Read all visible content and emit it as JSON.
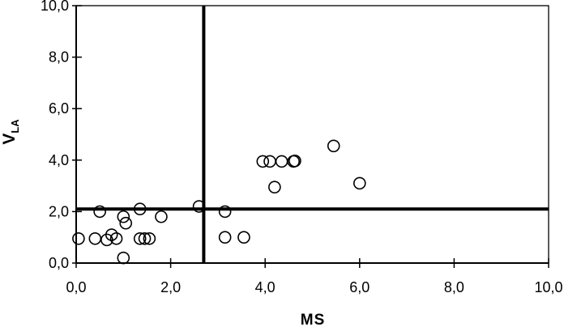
{
  "chart_data": {
    "type": "scatter",
    "title": "",
    "xlabel": "MS",
    "ylabel": "V",
    "ylabel_subscript": "LA",
    "xlim": [
      0,
      10
    ],
    "ylim": [
      0,
      10
    ],
    "x_tick_values": [
      0,
      2,
      4,
      6,
      8,
      10
    ],
    "x_tick_labels": [
      "0,0",
      "2,0",
      "4,0",
      "6,0",
      "8,0",
      "10,0"
    ],
    "y_tick_values": [
      0,
      2,
      4,
      6,
      8,
      10
    ],
    "y_tick_labels": [
      "0,0",
      "2,0",
      "4,0",
      "6,0",
      "8,0",
      "10,0"
    ],
    "grid": false,
    "legend": false,
    "marker": {
      "shape": "open-circle",
      "radius_px": 7
    },
    "reference_lines": [
      {
        "orientation": "vertical",
        "x": 2.7
      },
      {
        "orientation": "horizontal",
        "y": 2.1
      }
    ],
    "points": [
      {
        "x": 0.05,
        "y": 0.95
      },
      {
        "x": 0.4,
        "y": 0.95
      },
      {
        "x": 0.65,
        "y": 0.9
      },
      {
        "x": 0.75,
        "y": 1.1
      },
      {
        "x": 0.85,
        "y": 0.95
      },
      {
        "x": 1.0,
        "y": 0.2
      },
      {
        "x": 1.35,
        "y": 0.95
      },
      {
        "x": 1.45,
        "y": 0.95
      },
      {
        "x": 1.55,
        "y": 0.95
      },
      {
        "x": 0.5,
        "y": 2.0
      },
      {
        "x": 1.0,
        "y": 1.8
      },
      {
        "x": 1.05,
        "y": 1.55
      },
      {
        "x": 1.35,
        "y": 2.1
      },
      {
        "x": 1.8,
        "y": 1.8
      },
      {
        "x": 2.6,
        "y": 2.2
      },
      {
        "x": 3.15,
        "y": 2.0
      },
      {
        "x": 3.15,
        "y": 1.0
      },
      {
        "x": 3.55,
        "y": 1.0
      },
      {
        "x": 3.95,
        "y": 3.95
      },
      {
        "x": 4.1,
        "y": 3.95
      },
      {
        "x": 4.35,
        "y": 3.95
      },
      {
        "x": 4.6,
        "y": 3.95
      },
      {
        "x": 4.63,
        "y": 3.97
      },
      {
        "x": 5.45,
        "y": 4.55
      },
      {
        "x": 4.2,
        "y": 2.95
      },
      {
        "x": 6.0,
        "y": 3.1
      }
    ],
    "colors": {
      "axis": "#000000",
      "marker": "#000000",
      "reference_line": "#000000",
      "background": "#ffffff",
      "text": "#000000"
    }
  }
}
